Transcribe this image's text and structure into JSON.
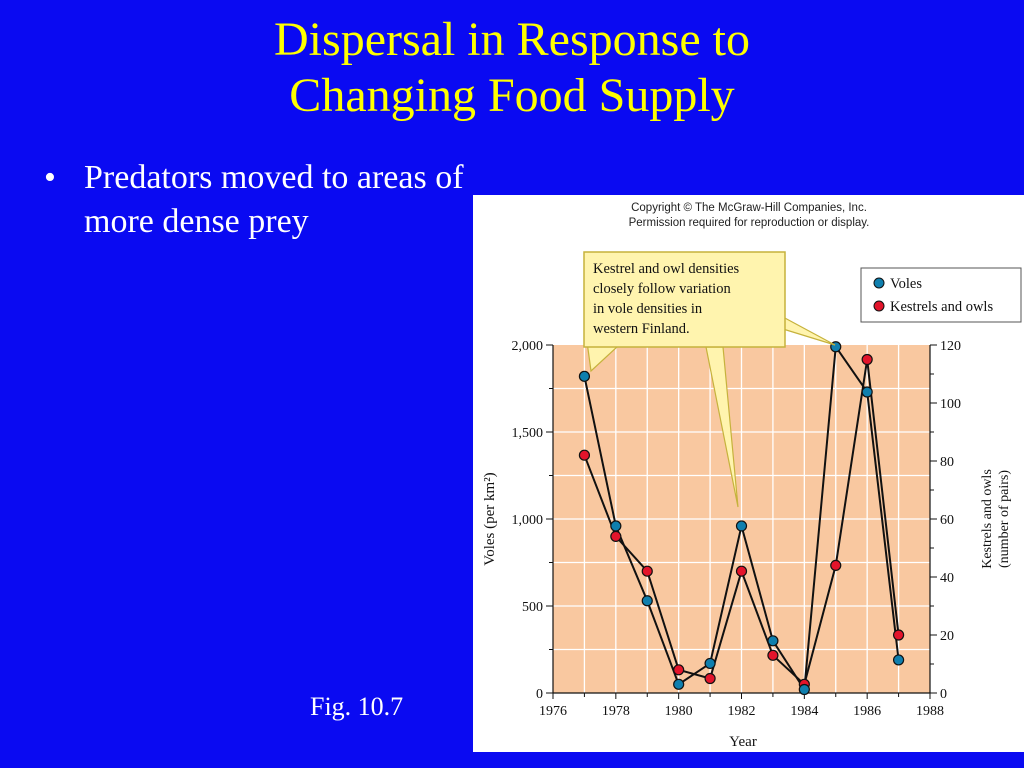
{
  "slide": {
    "title_line1": "Dispersal in Response to",
    "title_line2": "Changing Food Supply",
    "bullet_symbol": "•",
    "bullets": [
      "Predators moved to areas of more dense prey"
    ],
    "fig_caption": "Fig. 10.7"
  },
  "figure": {
    "copyright_line1": "Copyright © The McGraw-Hill Companies, Inc.",
    "copyright_line2": "Permission required for reproduction or display.",
    "callout_lines": [
      "Kestrel and owl densities",
      "closely follow variation",
      "in vole densities in",
      "western Finland."
    ]
  },
  "colors": {
    "background": "#0a0af2",
    "title": "#ffff00",
    "plot_area": "#f9c8a0",
    "voles": "#0f7fae",
    "predators": "#e3142b",
    "callout": "#fff4ae"
  },
  "chart_data": {
    "type": "line",
    "xlabel": "Year",
    "ylabel": "Voles (per km²)",
    "y2label_line1": "Kestrels and owls",
    "y2label_line2": "(number of pairs)",
    "xlim": [
      1976,
      1988
    ],
    "ylim": [
      0,
      2000
    ],
    "y2lim": [
      0,
      120
    ],
    "x_ticks": [
      1976,
      1978,
      1980,
      1982,
      1984,
      1986,
      1988
    ],
    "y_ticks": [
      0,
      500,
      1000,
      1500,
      2000
    ],
    "y_tick_labels": [
      "0",
      "500",
      "1,000",
      "1,500",
      "2,000"
    ],
    "y2_ticks": [
      0,
      20,
      40,
      60,
      80,
      100,
      120
    ],
    "grid": true,
    "legend_position": "top-right",
    "series": [
      {
        "name": "Voles",
        "axis": "left",
        "x": [
          1977,
          1978,
          1979,
          1980,
          1981,
          1982,
          1983,
          1984,
          1985,
          1986,
          1987
        ],
        "values": [
          1820,
          960,
          530,
          50,
          170,
          960,
          300,
          20,
          1990,
          1730,
          190
        ]
      },
      {
        "name": "Kestrels and owls",
        "axis": "right",
        "x": [
          1977,
          1978,
          1979,
          1980,
          1981,
          1982,
          1983,
          1984,
          1985,
          1986,
          1987
        ],
        "values": [
          82,
          54,
          42,
          8,
          5,
          42,
          13,
          3,
          44,
          115,
          20
        ]
      }
    ]
  }
}
